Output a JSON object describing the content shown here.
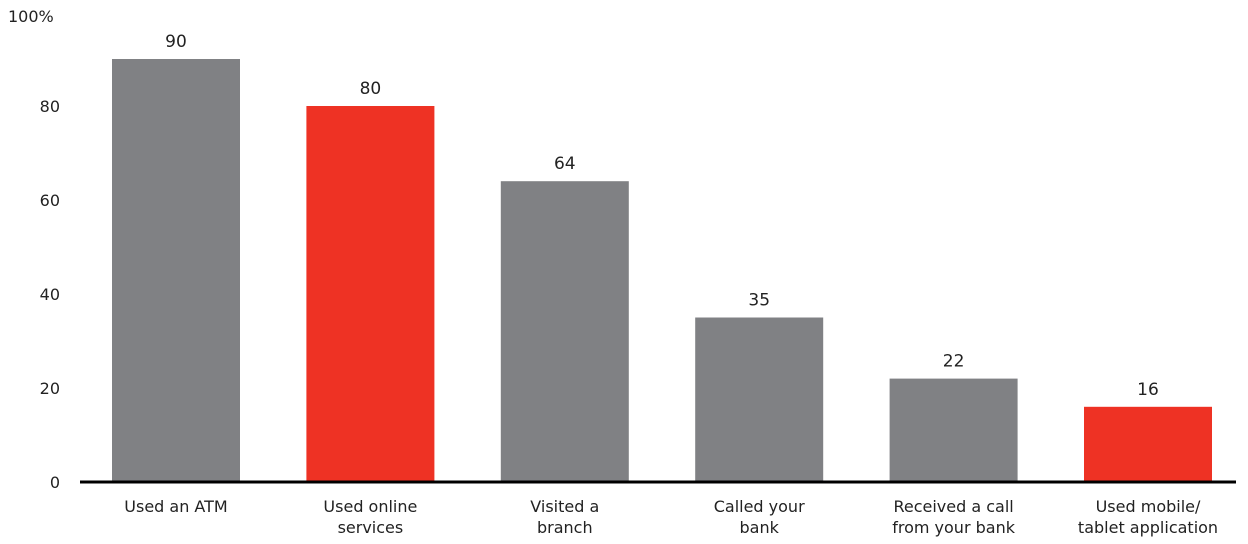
{
  "chart_data": {
    "type": "bar",
    "categories": [
      [
        "Used an ATM"
      ],
      [
        "Used online",
        "services"
      ],
      [
        "Visited a",
        "branch"
      ],
      [
        "Called your",
        "bank"
      ],
      [
        "Received a call",
        "from your bank"
      ],
      [
        "Used mobile/",
        "tablet application"
      ]
    ],
    "values": [
      90,
      80,
      64,
      35,
      22,
      16
    ],
    "highlight": [
      false,
      true,
      false,
      false,
      false,
      true
    ],
    "colors": {
      "default": "#808184",
      "highlight": "#ee3224",
      "axis": "#000000"
    },
    "y_ticks": [
      0,
      20,
      40,
      60,
      80,
      100
    ],
    "y_tick_labels": [
      "0",
      "20",
      "40",
      "60",
      "80",
      "100%"
    ],
    "ylim": [
      0,
      100
    ],
    "grid": false,
    "legend": "none"
  }
}
